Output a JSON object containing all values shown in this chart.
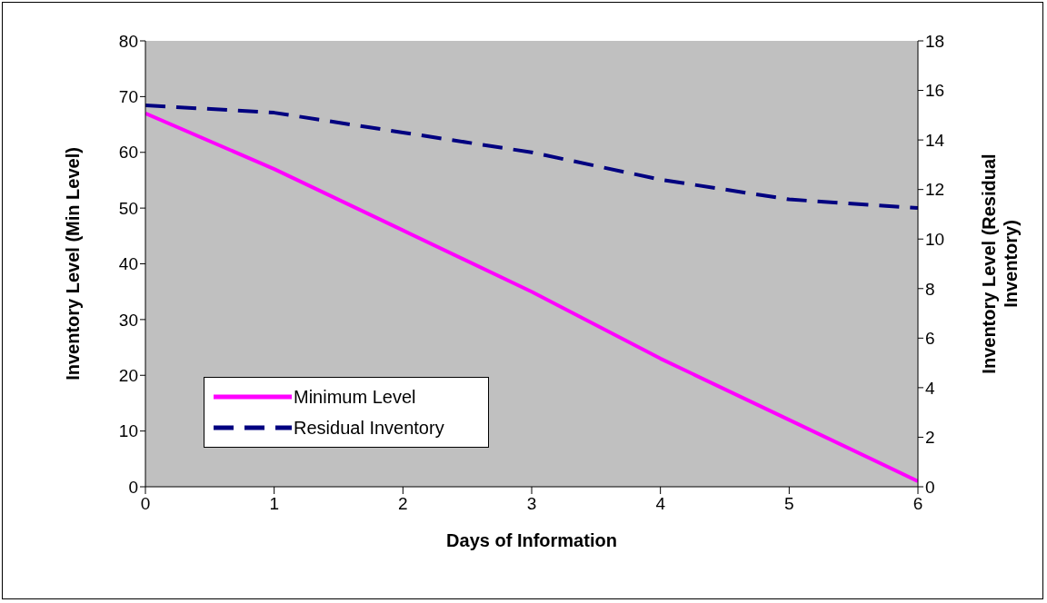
{
  "chart_data": {
    "type": "line",
    "xlabel": "Days of Information",
    "ylabel": "Inventory Level (Min Level)",
    "y2label": "Inventory Level (Residual Inventory)",
    "x": [
      0,
      1,
      2,
      3,
      4,
      5,
      6
    ],
    "series": [
      {
        "name": "Minimum Level",
        "color": "#ff00ff",
        "line_style": "solid",
        "values": [
          67,
          57,
          46,
          35,
          23,
          12,
          1
        ]
      },
      {
        "name": "Residual Inventory",
        "color": "#000080",
        "line_style": "dashed",
        "axis": "y2",
        "values": [
          15.4,
          15.1,
          14.3,
          13.5,
          12.4,
          11.6,
          11.25
        ]
      }
    ],
    "xlim": [
      0,
      6
    ],
    "xticks": [
      0,
      1,
      2,
      3,
      4,
      5,
      6
    ],
    "ylim": [
      0,
      80
    ],
    "yticks": [
      0,
      10,
      20,
      30,
      40,
      50,
      60,
      70,
      80
    ],
    "y2lim": [
      0,
      18
    ],
    "y2ticks": [
      0,
      2,
      4,
      6,
      8,
      10,
      12,
      14,
      16,
      18
    ],
    "grid": false,
    "legend": "bottom left",
    "marker": "none"
  }
}
